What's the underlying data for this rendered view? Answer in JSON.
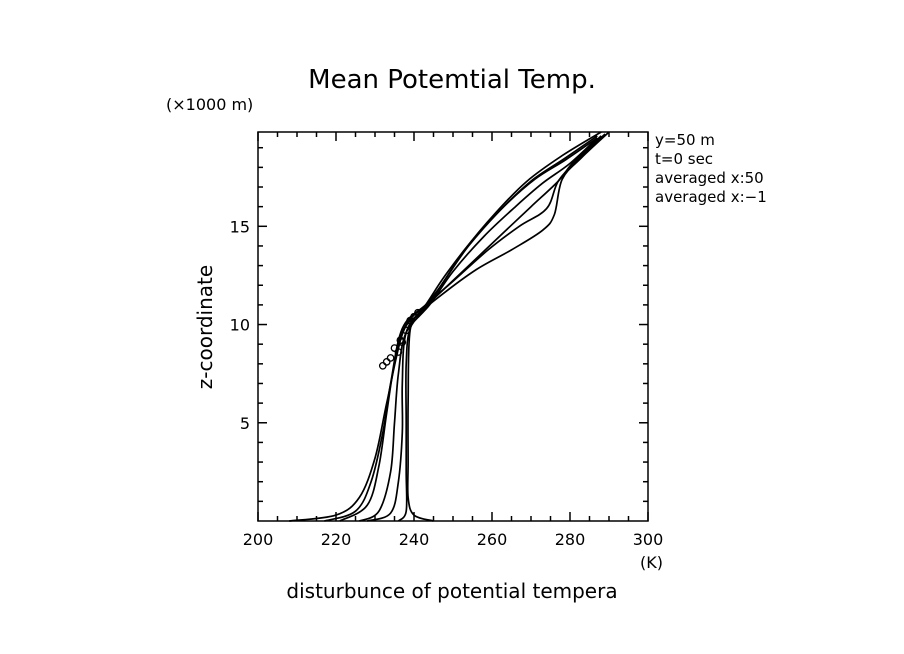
{
  "chart_data": {
    "type": "line",
    "title": "Mean Potemtial Temp.",
    "xlabel": "disturbunce of potential tempera",
    "ylabel": "z-coordinate",
    "x_unit": "(K)",
    "y_unit": "(×1000 m)",
    "xlim": [
      200,
      300
    ],
    "ylim": [
      0,
      19.8
    ],
    "x_ticks": [
      200,
      220,
      240,
      260,
      280,
      300
    ],
    "y_ticks": [
      5,
      10,
      15
    ],
    "grid": false,
    "legend": "none",
    "info_lines": [
      "y=50 m",
      "t=0 sec",
      "averaged  x:50",
      "averaged  x:−1"
    ],
    "series": [
      {
        "points": [
          [
            208,
            0
          ],
          [
            220,
            0.3
          ],
          [
            226,
            1.2
          ],
          [
            230,
            3.2
          ],
          [
            233,
            6
          ],
          [
            237,
            9.5
          ],
          [
            241,
            10.5
          ],
          [
            247,
            11.5
          ],
          [
            256,
            12.8
          ],
          [
            265,
            13.8
          ],
          [
            273,
            14.8
          ],
          [
            276,
            15.6
          ],
          [
            278,
            17.4
          ],
          [
            283,
            18.5
          ],
          [
            290,
            19.8
          ]
        ]
      },
      {
        "points": [
          [
            217,
            0
          ],
          [
            225,
            0.5
          ],
          [
            229,
            2
          ],
          [
            232,
            4.5
          ],
          [
            234,
            7
          ],
          [
            237,
            9.8
          ],
          [
            243,
            11
          ],
          [
            250,
            12.2
          ],
          [
            259,
            13.8
          ],
          [
            267,
            15
          ],
          [
            274,
            15.9
          ],
          [
            277,
            17.3
          ],
          [
            282,
            18.4
          ],
          [
            289,
            19.7
          ]
        ]
      },
      {
        "points": [
          [
            221,
            0
          ],
          [
            228,
            0.8
          ],
          [
            231,
            2.8
          ],
          [
            233,
            5.5
          ],
          [
            235,
            8
          ],
          [
            238,
            10
          ],
          [
            245,
            11.3
          ],
          [
            253,
            12.8
          ],
          [
            262,
            14.5
          ],
          [
            270,
            16
          ],
          [
            277,
            17.3
          ],
          [
            281,
            18.3
          ],
          [
            288,
            19.6
          ]
        ]
      },
      {
        "points": [
          [
            226,
            0
          ],
          [
            231,
            0.5
          ],
          [
            234,
            2.5
          ],
          [
            235,
            5
          ],
          [
            236,
            7.5
          ],
          [
            238,
            9.6
          ],
          [
            244,
            11
          ],
          [
            250,
            12.7
          ],
          [
            258,
            14.5
          ],
          [
            266,
            16
          ],
          [
            273,
            17.2
          ],
          [
            280,
            18.2
          ],
          [
            287,
            19.5
          ]
        ]
      },
      {
        "points": [
          [
            228,
            0
          ],
          [
            234,
            0.4
          ],
          [
            236,
            2
          ],
          [
            237,
            4.5
          ],
          [
            237,
            7
          ],
          [
            238,
            9.6
          ],
          [
            243,
            11
          ],
          [
            248,
            12.5
          ],
          [
            255,
            14.3
          ],
          [
            263,
            16
          ],
          [
            271,
            17.4
          ],
          [
            279,
            18.4
          ],
          [
            287,
            19.5
          ]
        ]
      },
      {
        "points": [
          [
            236,
            0
          ],
          [
            238,
            0.5
          ],
          [
            238,
            2.5
          ],
          [
            238,
            5
          ],
          [
            238,
            8
          ],
          [
            239,
            9.8
          ],
          [
            243,
            10.8
          ],
          [
            248,
            12.3
          ],
          [
            254,
            14
          ],
          [
            262,
            15.8
          ],
          [
            270,
            17.3
          ],
          [
            279,
            18.5
          ],
          [
            287,
            19.6
          ]
        ]
      },
      {
        "points": [
          [
            245,
            0
          ],
          [
            240,
            0.3
          ],
          [
            238.5,
            1.2
          ],
          [
            238.5,
            3
          ],
          [
            238.5,
            6
          ],
          [
            239,
            9.7
          ],
          [
            242,
            10.7
          ],
          [
            247,
            12
          ],
          [
            253,
            13.8
          ],
          [
            261,
            15.7
          ],
          [
            269,
            17.3
          ],
          [
            278,
            18.6
          ],
          [
            288,
            19.8
          ]
        ]
      }
    ],
    "markers": [
      [
        232,
        7.9
      ],
      [
        233,
        8.1
      ],
      [
        234,
        8.3
      ],
      [
        236,
        8.6
      ],
      [
        236.5,
        9.2
      ],
      [
        237,
        9.1
      ],
      [
        238,
        9.7
      ],
      [
        239,
        10.2
      ],
      [
        240,
        10.4
      ],
      [
        241,
        10.6
      ],
      [
        235,
        8.8
      ]
    ]
  }
}
